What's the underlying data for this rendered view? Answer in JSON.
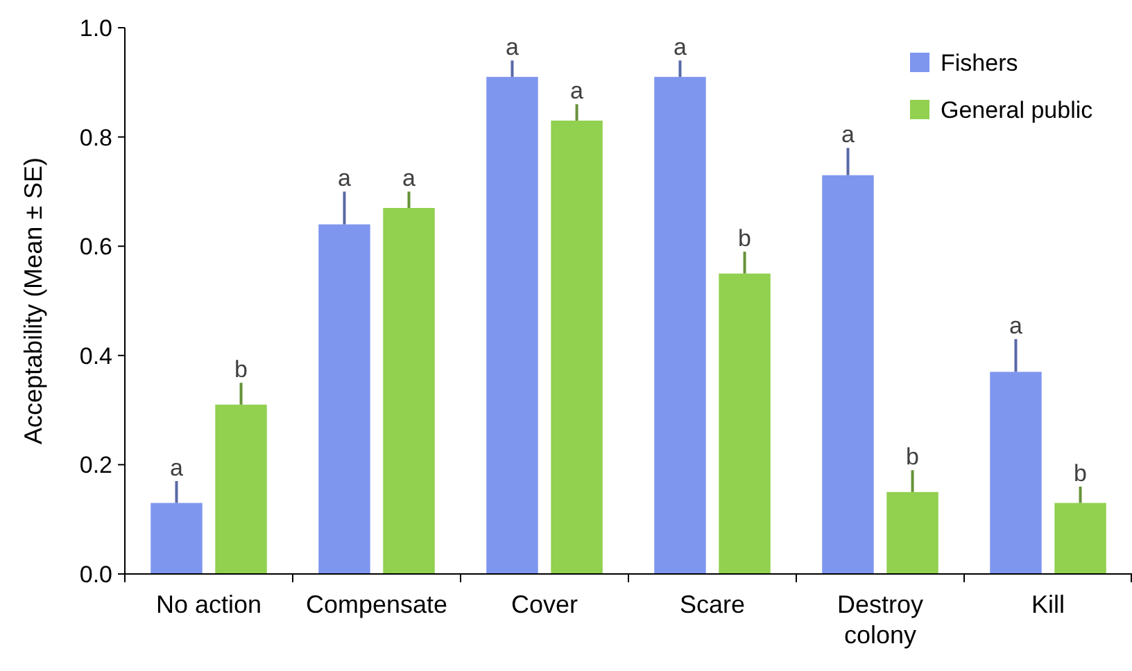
{
  "chart_data": {
    "type": "bar",
    "ylabel": "Acceptability (Mean ± SE)",
    "categories": [
      "No action",
      "Compensate",
      "Cover",
      "Scare",
      "Destroy colony",
      "Kill"
    ],
    "series": [
      {
        "name": "Fishers",
        "color": "#7f96ef",
        "values": [
          0.13,
          0.64,
          0.91,
          0.91,
          0.73,
          0.37
        ],
        "errors": [
          [
            0.13,
            0.17
          ],
          [
            0.64,
            0.7
          ],
          [
            0.91,
            0.94
          ],
          [
            0.91,
            0.94
          ],
          [
            0.73,
            0.78
          ],
          [
            0.37,
            0.43
          ]
        ],
        "value_labels": [
          "a",
          "a",
          "a",
          "a",
          "a",
          "a"
        ]
      },
      {
        "name": "General public",
        "color": "#92d050",
        "values": [
          0.31,
          0.67,
          0.83,
          0.55,
          0.15,
          0.13
        ],
        "errors": [
          [
            0.31,
            0.35
          ],
          [
            0.67,
            0.7
          ],
          [
            0.83,
            0.86
          ],
          [
            0.55,
            0.59
          ],
          [
            0.15,
            0.19
          ],
          [
            0.13,
            0.16
          ]
        ],
        "value_labels": [
          "b",
          "a",
          "a",
          "b",
          "b",
          "b"
        ]
      }
    ],
    "ylim": [
      0,
      1
    ],
    "yticks": [
      {
        "value": 0,
        "label": "0.0"
      },
      0.2,
      0.4,
      0.6,
      0.8,
      {
        "value": 1,
        "label": "1.0"
      }
    ],
    "grid": false,
    "legend": "top right"
  }
}
